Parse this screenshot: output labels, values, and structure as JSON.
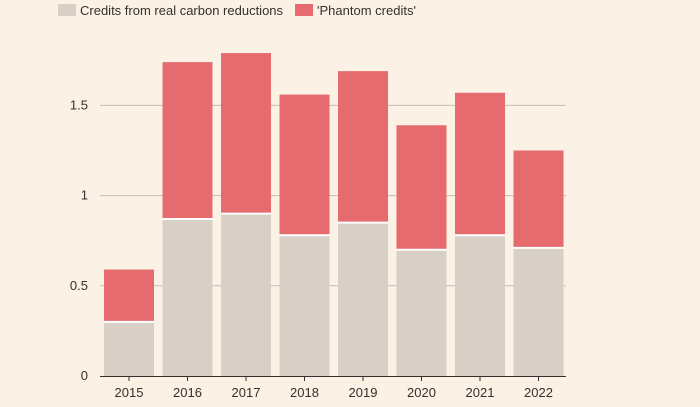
{
  "chart_data": {
    "type": "bar",
    "stacked": true,
    "categories": [
      "2015",
      "2016",
      "2017",
      "2018",
      "2019",
      "2020",
      "2021",
      "2022"
    ],
    "series": [
      {
        "name": "Credits from real carbon reductions",
        "color": "#d8cfc7",
        "values": [
          0.3,
          0.87,
          0.9,
          0.78,
          0.85,
          0.7,
          0.78,
          0.71
        ]
      },
      {
        "name": "'Phantom credits'",
        "color": "#e56b6f",
        "values": [
          0.29,
          0.87,
          0.89,
          0.78,
          0.84,
          0.69,
          0.79,
          0.54
        ]
      }
    ],
    "yticks": [
      0,
      0.5,
      1,
      1.5
    ],
    "ytick_labels": [
      "0",
      "0.5",
      "1",
      "1.5"
    ],
    "ylim": [
      0,
      1.9
    ],
    "grid": true,
    "legend_position": "top-left",
    "title": "",
    "xlabel": "",
    "ylabel": ""
  }
}
